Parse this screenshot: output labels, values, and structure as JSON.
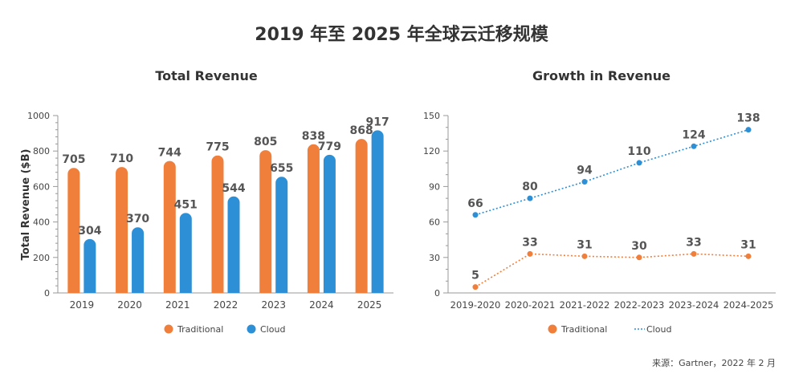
{
  "main_title": "2019 年至 2025 年全球云迁移规模",
  "source": "来源：Gartner，2022 年 2 月",
  "colors": {
    "traditional": "#f07f3c",
    "cloud": "#2d8fd5",
    "axis": "#999999",
    "label": "#555555"
  },
  "chart_data": [
    {
      "type": "bar",
      "title": "Total Revenue",
      "xlabel": "",
      "ylabel": "Total Revenue ($B)",
      "ylim": [
        0,
        1000
      ],
      "yticks": [
        0,
        200,
        400,
        600,
        800,
        1000
      ],
      "categories": [
        "2019",
        "2020",
        "2021",
        "2022",
        "2023",
        "2024",
        "2025"
      ],
      "series": [
        {
          "name": "Traditional",
          "values": [
            705,
            710,
            744,
            775,
            805,
            838,
            868
          ]
        },
        {
          "name": "Cloud",
          "values": [
            304,
            370,
            451,
            544,
            655,
            779,
            917
          ]
        }
      ],
      "legend": "bottom"
    },
    {
      "type": "line",
      "title": "Growth in Revenue",
      "xlabel": "",
      "ylabel": "",
      "ylim": [
        0,
        150
      ],
      "yticks": [
        0,
        30,
        60,
        90,
        120,
        150
      ],
      "categories": [
        "2019-2020",
        "2020-2021",
        "2021-2022",
        "2022-2023",
        "2023-2024",
        "2024-2025"
      ],
      "series": [
        {
          "name": "Traditional",
          "values": [
            5,
            33,
            31,
            30,
            33,
            31
          ]
        },
        {
          "name": "Cloud",
          "values": [
            66,
            80,
            94,
            110,
            124,
            138
          ]
        }
      ],
      "legend": "bottom"
    }
  ]
}
